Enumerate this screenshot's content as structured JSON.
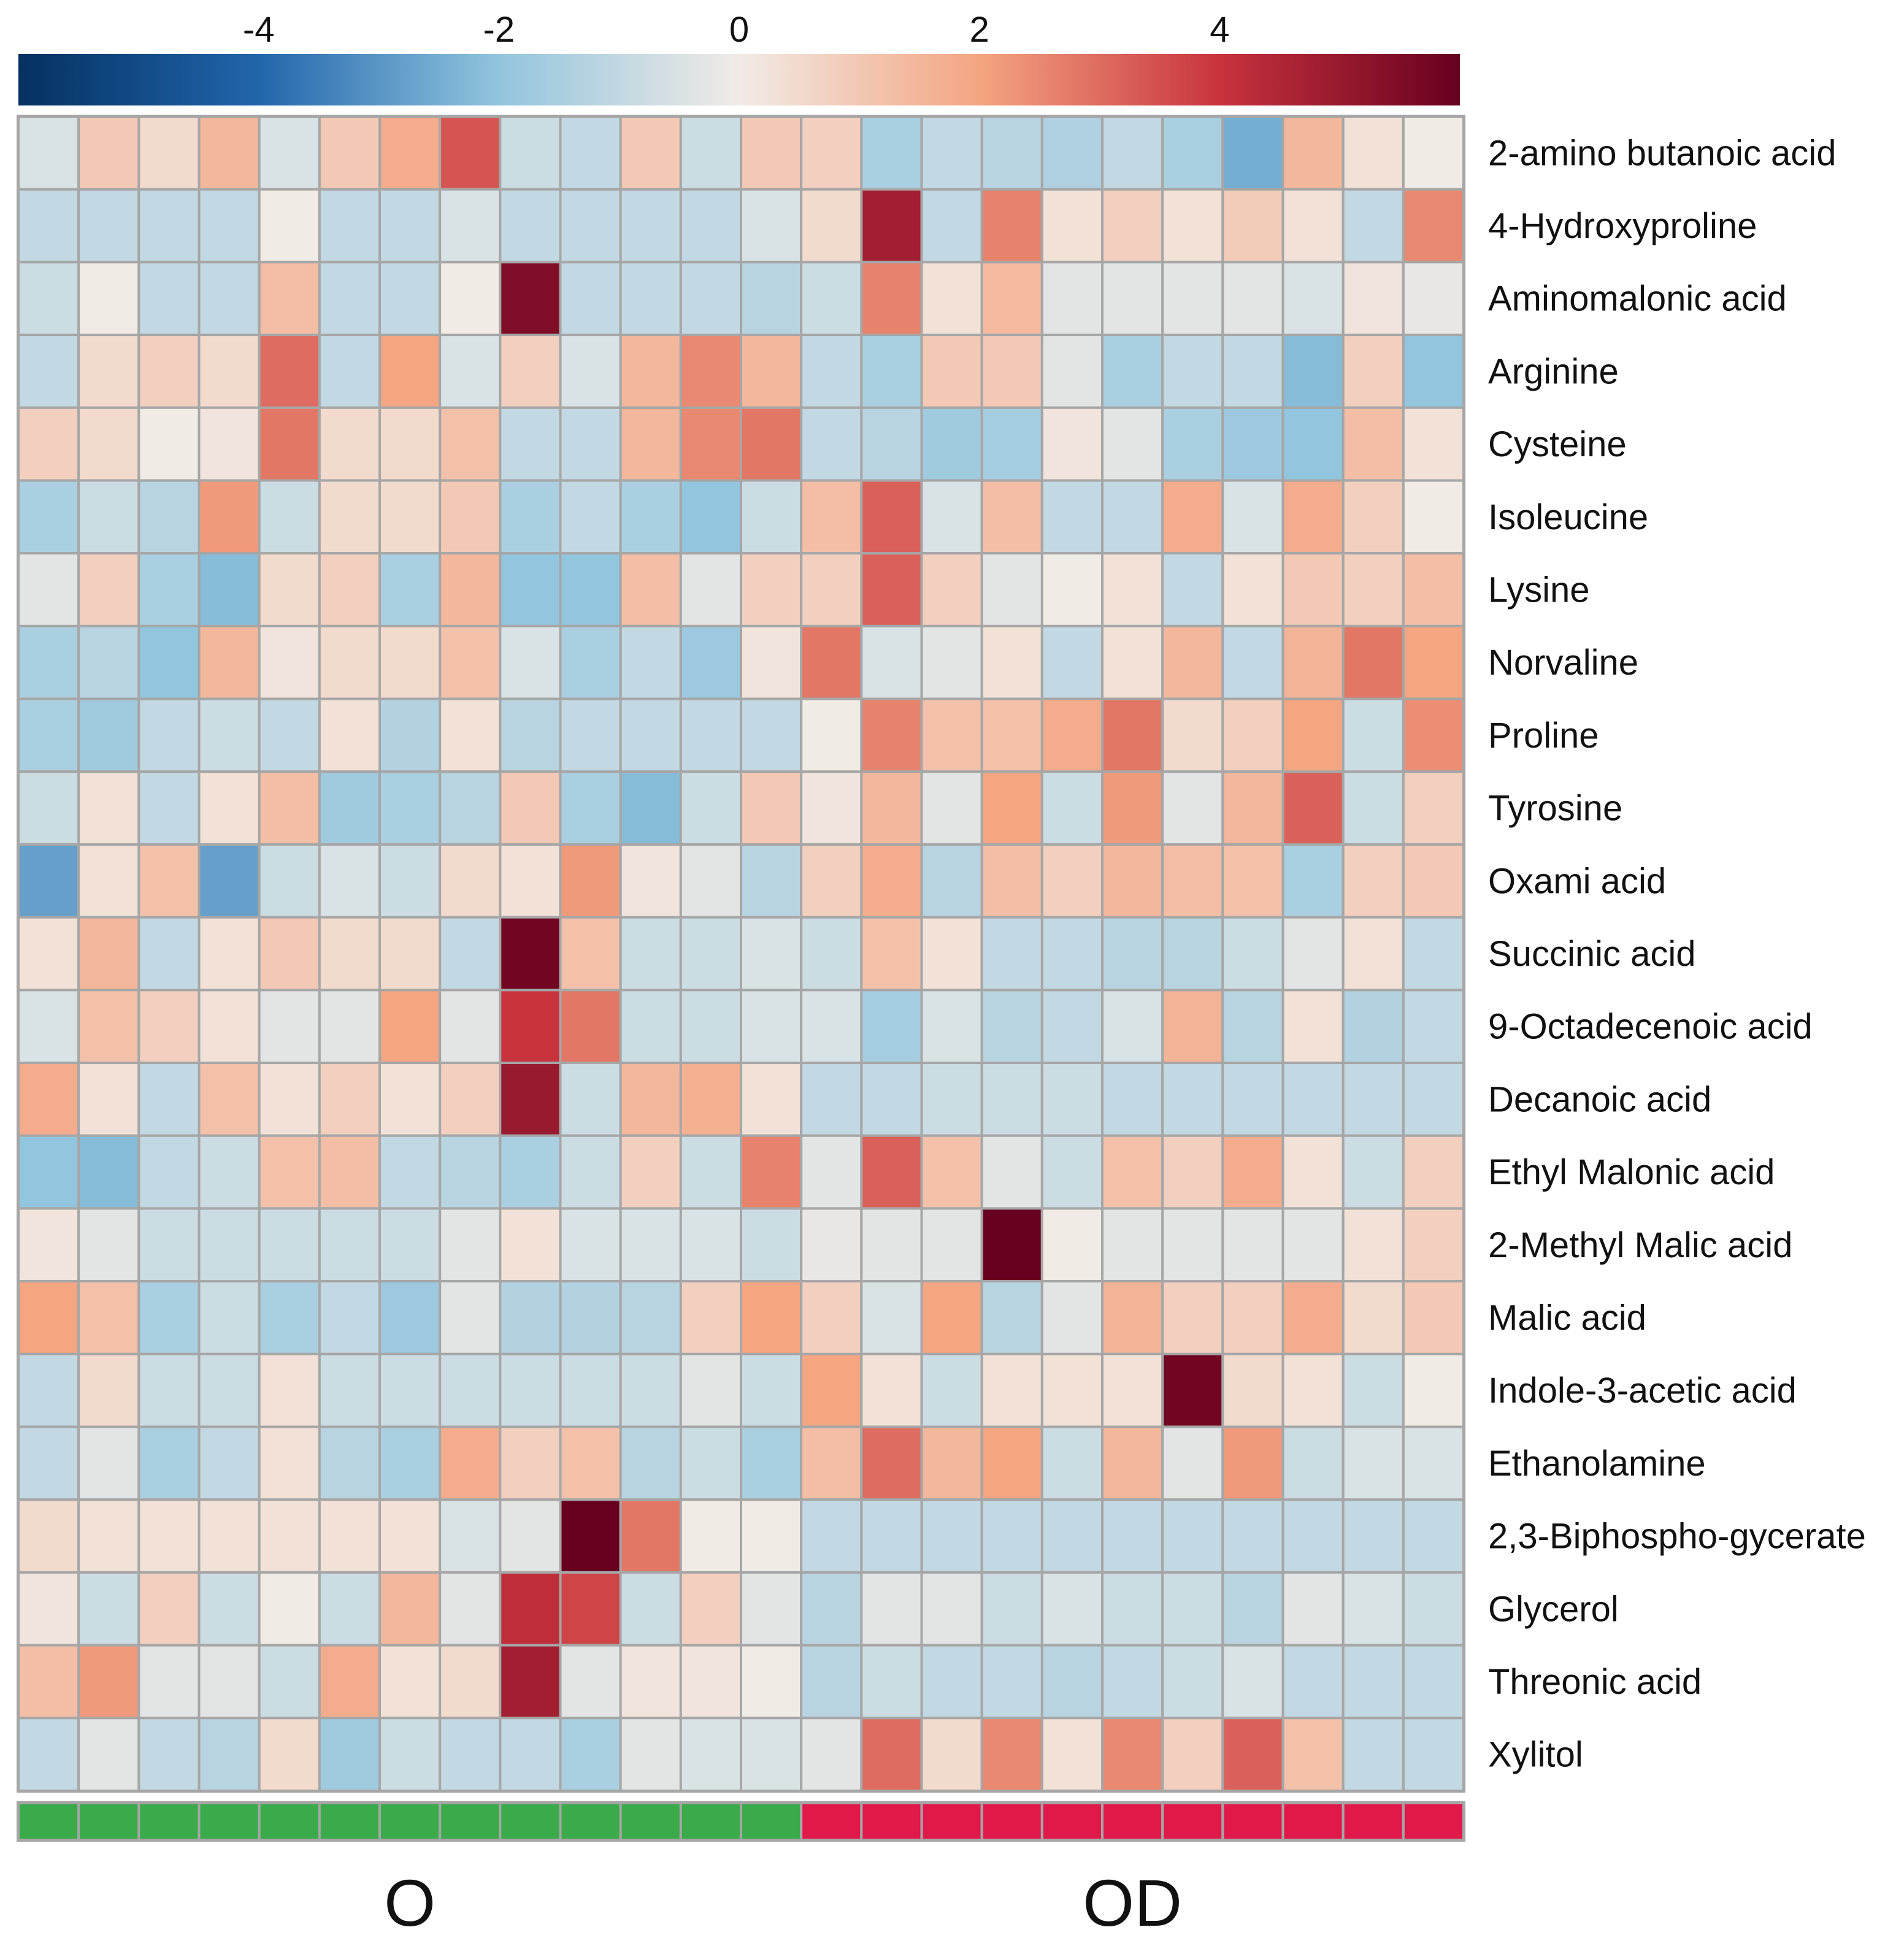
{
  "chart_data": {
    "type": "heatmap",
    "title": "",
    "colorbar": {
      "ticks": [
        -4,
        -2,
        0,
        2,
        4
      ],
      "range": [
        -6,
        6
      ],
      "stops": [
        {
          "value": -6,
          "color": "#053061"
        },
        {
          "value": -4,
          "color": "#2166ac"
        },
        {
          "value": -2,
          "color": "#92c5de"
        },
        {
          "value": 0,
          "color": "#f1ebe6"
        },
        {
          "value": 2,
          "color": "#f4a582"
        },
        {
          "value": 4,
          "color": "#c8333d"
        },
        {
          "value": 6,
          "color": "#67001f"
        }
      ]
    },
    "rows": [
      "2-amino butanoic acid",
      "4-Hydroxyproline",
      "Aminomalonic acid",
      "Arginine",
      "Cysteine",
      "Isoleucine",
      "Lysine",
      "Norvaline",
      "Proline",
      "Tyrosine",
      "Oxami acid",
      "Succinic acid",
      "9-Octadecenoic acid",
      "Decanoic acid",
      "Ethyl Malonic acid",
      "2-Methyl Malic acid",
      "Malic acid",
      "Indole-3-acetic acid",
      "Ethanolamine",
      "2,3-Biphospho-gycerate",
      "Glycerol",
      "Threonic acid",
      "Xylitol"
    ],
    "groups": [
      {
        "name": "O",
        "count": 13,
        "color": "#3aaa4a"
      },
      {
        "name": "OD",
        "count": 11,
        "color": "#e0194a"
      }
    ],
    "values": [
      [
        -0.5,
        1.0,
        0.5,
        1.5,
        -0.5,
        1.0,
        1.8,
        3.4,
        -0.8,
        -1.0,
        1.0,
        -0.8,
        1.0,
        0.8,
        -1.5,
        -1.0,
        -1.2,
        -1.4,
        -1.0,
        -1.5,
        -2.5,
        1.5,
        0.3,
        0.0
      ],
      [
        -1.0,
        -1.0,
        -1.0,
        -1.0,
        0.0,
        -1.0,
        -1.0,
        -0.5,
        -1.0,
        -1.0,
        -1.0,
        -1.0,
        -0.5,
        0.5,
        4.8,
        -1.0,
        2.6,
        0.3,
        0.8,
        0.3,
        0.9,
        0.3,
        -1.0,
        2.5
      ],
      [
        -0.8,
        0.0,
        -1.0,
        -1.0,
        1.3,
        -1.0,
        -1.0,
        0.0,
        5.5,
        -1.0,
        -1.0,
        -1.0,
        -1.2,
        -0.8,
        2.6,
        0.3,
        1.4,
        -0.3,
        -0.3,
        -0.3,
        -0.3,
        -0.5,
        0.2,
        -0.2
      ],
      [
        -1.0,
        0.5,
        0.8,
        0.5,
        3.0,
        -1.0,
        2.0,
        -0.5,
        0.8,
        -0.5,
        1.5,
        2.5,
        1.5,
        -1.0,
        -1.5,
        1.0,
        1.0,
        -0.3,
        -1.5,
        -1.0,
        -1.0,
        -2.2,
        0.8,
        -2.0
      ],
      [
        0.8,
        0.5,
        0.0,
        0.2,
        2.8,
        0.5,
        0.5,
        1.2,
        -1.0,
        -1.0,
        1.5,
        2.5,
        2.8,
        -1.0,
        -1.2,
        -1.7,
        -1.6,
        0.2,
        -0.3,
        -1.5,
        -1.8,
        -2.0,
        1.3,
        0.3
      ],
      [
        -1.5,
        -0.8,
        -1.2,
        2.2,
        -0.8,
        0.5,
        0.5,
        1.0,
        -1.5,
        -1.0,
        -1.5,
        -2.0,
        -0.8,
        1.3,
        3.2,
        -0.5,
        1.3,
        -1.0,
        -1.0,
        1.8,
        -0.5,
        1.8,
        0.8,
        0.0
      ],
      [
        -0.3,
        0.8,
        -1.5,
        -2.2,
        0.5,
        0.8,
        -1.5,
        1.5,
        -2.0,
        -2.0,
        1.3,
        -0.3,
        0.8,
        0.8,
        3.2,
        0.8,
        -0.3,
        0.0,
        0.3,
        -1.0,
        0.3,
        1.0,
        0.8,
        1.3
      ],
      [
        -1.5,
        -1.2,
        -2.0,
        1.5,
        0.2,
        0.5,
        0.5,
        1.2,
        -0.5,
        -1.5,
        -1.0,
        -1.8,
        0.2,
        2.8,
        -0.5,
        -0.3,
        0.3,
        -1.0,
        0.3,
        1.5,
        -1.0,
        1.6,
        2.8,
        2.0
      ],
      [
        -1.5,
        -1.7,
        -1.0,
        -0.8,
        -1.0,
        0.3,
        -1.3,
        0.3,
        -1.2,
        -1.0,
        -1.0,
        -1.0,
        -1.0,
        0.0,
        2.6,
        1.2,
        1.2,
        1.8,
        2.8,
        0.5,
        0.8,
        2.0,
        -0.8,
        2.4
      ],
      [
        -0.8,
        0.3,
        -1.0,
        0.3,
        1.3,
        -1.7,
        -1.5,
        -1.2,
        1.0,
        -1.5,
        -2.2,
        -0.8,
        1.0,
        0.2,
        1.5,
        -0.3,
        2.0,
        -0.8,
        2.2,
        -0.3,
        1.5,
        3.2,
        -0.8,
        0.8
      ],
      [
        -2.8,
        0.3,
        1.2,
        -2.8,
        -0.8,
        -0.5,
        -0.8,
        0.5,
        0.3,
        2.2,
        0.2,
        -0.3,
        -1.2,
        0.8,
        1.8,
        -1.2,
        1.3,
        0.8,
        1.5,
        1.3,
        1.2,
        -1.5,
        0.8,
        1.0
      ],
      [
        0.3,
        1.5,
        -1.0,
        0.3,
        1.0,
        0.5,
        0.5,
        -1.0,
        5.8,
        1.2,
        -0.8,
        -0.8,
        -0.5,
        -0.8,
        1.2,
        0.3,
        -1.0,
        -1.0,
        -1.2,
        -1.2,
        -0.8,
        -0.3,
        0.3,
        -1.0
      ],
      [
        -0.5,
        1.2,
        0.8,
        0.3,
        -0.3,
        -0.3,
        2.0,
        -0.3,
        4.0,
        2.8,
        -0.8,
        -0.8,
        -0.5,
        -0.5,
        -1.6,
        -0.5,
        -1.2,
        -1.0,
        -0.5,
        1.6,
        -1.2,
        0.3,
        -1.3,
        -1.0
      ],
      [
        1.8,
        0.3,
        -1.0,
        1.2,
        0.3,
        0.8,
        0.3,
        0.8,
        5.0,
        -0.8,
        1.5,
        1.7,
        0.3,
        -1.0,
        -1.0,
        -0.8,
        -0.8,
        -0.8,
        -1.0,
        -1.0,
        -1.0,
        -1.0,
        -1.0,
        -1.0
      ],
      [
        -2.0,
        -2.2,
        -1.0,
        -0.8,
        1.2,
        1.3,
        -1.0,
        -1.2,
        -1.5,
        -0.8,
        0.8,
        -0.8,
        2.6,
        -0.3,
        3.2,
        1.2,
        -0.3,
        -0.8,
        1.2,
        0.8,
        1.8,
        0.3,
        -0.8,
        0.8
      ],
      [
        0.2,
        -0.3,
        -0.8,
        -0.8,
        -0.8,
        -0.8,
        -0.8,
        -0.3,
        0.3,
        -0.5,
        -0.5,
        -0.5,
        -0.8,
        -0.2,
        -0.3,
        -0.3,
        6.0,
        0.0,
        -0.3,
        -0.3,
        -0.3,
        -0.3,
        0.3,
        0.8
      ],
      [
        2.0,
        1.2,
        -1.5,
        -0.8,
        -1.5,
        -1.0,
        -1.8,
        -0.3,
        -1.3,
        -1.3,
        -1.2,
        0.8,
        2.0,
        0.8,
        -0.5,
        2.0,
        -1.2,
        -0.3,
        1.6,
        0.8,
        0.8,
        1.8,
        0.5,
        1.0
      ],
      [
        -1.0,
        0.5,
        -0.8,
        -0.8,
        0.3,
        -0.8,
        -0.8,
        -0.8,
        -0.8,
        -0.8,
        -0.8,
        -0.3,
        -0.8,
        2.0,
        0.3,
        -0.8,
        0.3,
        0.3,
        0.3,
        5.8,
        0.5,
        0.3,
        -0.8,
        0.0
      ],
      [
        -1.0,
        -0.3,
        -1.5,
        -1.0,
        0.3,
        -1.2,
        -1.5,
        1.8,
        0.8,
        1.2,
        -1.2,
        -0.8,
        -1.5,
        1.3,
        3.0,
        1.5,
        2.0,
        -0.8,
        1.5,
        -0.3,
        2.2,
        -0.8,
        -0.5,
        -0.5
      ],
      [
        0.5,
        0.3,
        0.3,
        0.3,
        0.3,
        0.3,
        0.3,
        -0.5,
        -0.3,
        6.0,
        2.8,
        0.0,
        0.0,
        -1.0,
        -1.0,
        -1.0,
        -1.0,
        -1.0,
        -1.0,
        -1.0,
        -1.0,
        -1.0,
        -1.0,
        -1.0
      ],
      [
        0.2,
        -0.8,
        0.8,
        -0.8,
        0.0,
        -0.8,
        1.5,
        -0.3,
        4.2,
        3.7,
        -0.8,
        0.8,
        -0.3,
        -1.2,
        -0.3,
        -0.3,
        -0.8,
        -0.5,
        -0.8,
        -0.8,
        -1.2,
        -0.3,
        -0.5,
        -0.8
      ],
      [
        1.3,
        2.2,
        -0.3,
        -0.3,
        -0.8,
        1.8,
        0.3,
        0.5,
        4.8,
        -0.3,
        0.2,
        0.2,
        0.0,
        -1.2,
        -0.8,
        -1.0,
        -1.0,
        -1.2,
        -1.0,
        -0.8,
        -0.5,
        -1.0,
        -1.0,
        -1.0
      ],
      [
        -1.0,
        -0.3,
        -1.0,
        -1.2,
        0.5,
        -1.7,
        -0.8,
        -1.0,
        -1.0,
        -1.5,
        -0.3,
        -0.5,
        -0.5,
        -0.3,
        3.0,
        0.5,
        2.5,
        0.3,
        2.5,
        0.8,
        3.2,
        1.2,
        -1.0,
        -1.0
      ]
    ]
  }
}
